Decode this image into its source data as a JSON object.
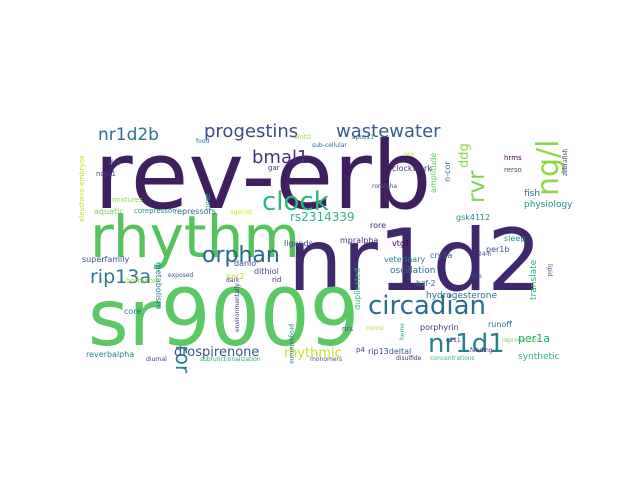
{
  "words": [
    {
      "text": "rev-erb",
      "color": "#3f1f5f"
    },
    {
      "text": "nr1d2",
      "color": "#40286e"
    },
    {
      "text": "sr9009",
      "color": "#5bc864"
    },
    {
      "text": "rhythm",
      "color": "#55c35b"
    },
    {
      "text": "circadian",
      "color": "#2b6d8c"
    },
    {
      "text": "nr1d1",
      "color": "#23818b"
    },
    {
      "text": "ng/l",
      "color": "#8fd744"
    },
    {
      "text": "progestins",
      "color": "#3b4c8a"
    },
    {
      "text": "wastewater",
      "color": "#355c8c"
    },
    {
      "text": "clock",
      "color": "#2fb47c"
    },
    {
      "text": "orphan",
      "color": "#26668e"
    },
    {
      "text": "nr1d2b",
      "color": "#2b728e"
    },
    {
      "text": "bmal1",
      "color": "#46337e"
    },
    {
      "text": "rip13a",
      "color": "#2a788e"
    },
    {
      "text": "rvr",
      "color": "#7ed34f"
    },
    {
      "text": "ror",
      "color": "#26828e"
    },
    {
      "text": "rs2314339",
      "color": "#31b57b"
    },
    {
      "text": "drospirenone",
      "color": "#3b528b"
    },
    {
      "text": "rhythmic",
      "color": "#c8e020"
    },
    {
      "text": "per1a",
      "color": "#1f9e89"
    },
    {
      "text": "ddg",
      "color": "#8fd744"
    },
    {
      "text": "fish",
      "color": "#2c718e"
    },
    {
      "text": "physiology",
      "color": "#20928c"
    },
    {
      "text": "amplitude",
      "color": "#5ec962"
    },
    {
      "text": "oscillation",
      "color": "#2d708e"
    },
    {
      "text": "mpralpha",
      "color": "#472d7b"
    },
    {
      "text": "dithiol",
      "color": "#3f4788"
    },
    {
      "text": "veterinary",
      "color": "#26828e"
    },
    {
      "text": "hydrogesterone",
      "color": "#2e6e8e"
    },
    {
      "text": "translate",
      "color": "#29af7f"
    },
    {
      "text": "gsk4112",
      "color": "#238a8d"
    },
    {
      "text": "rip13deltal",
      "color": "#3b528b"
    },
    {
      "text": "porphyrin",
      "color": "#46337e"
    },
    {
      "text": "runoff",
      "color": "#31688e"
    },
    {
      "text": "synthetic",
      "color": "#35b779"
    },
    {
      "text": "reverbalpha",
      "color": "#26828e"
    },
    {
      "text": "superfamily",
      "color": "#3e4c8a"
    },
    {
      "text": "metabolism",
      "color": "#2a788e"
    },
    {
      "text": "hormone",
      "color": "#a2da37"
    },
    {
      "text": "danio",
      "color": "#3e4a89"
    },
    {
      "text": "duplicated",
      "color": "#35b779"
    },
    {
      "text": "vtg1",
      "color": "#440154"
    },
    {
      "text": "cry1a",
      "color": "#31688e"
    },
    {
      "text": "per1b",
      "color": "#3b528b"
    },
    {
      "text": "sleep",
      "color": "#21918c"
    },
    {
      "text": "hzf-2",
      "color": "#2c728e"
    },
    {
      "text": "rore",
      "color": "#482475"
    },
    {
      "text": "ligands",
      "color": "#3b528b"
    },
    {
      "text": "repressors",
      "color": "#31688e"
    },
    {
      "text": "corepressor",
      "color": "#21918c"
    },
    {
      "text": "mixtures",
      "color": "#8fd744"
    },
    {
      "text": "aquatic",
      "color": "#7ad151"
    },
    {
      "text": "ncor1",
      "color": "#433e85"
    },
    {
      "text": "drs",
      "color": "#3e4989"
    },
    {
      "text": "clockwork",
      "color": "#46327e"
    },
    {
      "text": "hrms",
      "color": "#440154"
    },
    {
      "text": "rerso",
      "color": "#3b528b"
    },
    {
      "text": "n-cor",
      "color": "#2a788e"
    },
    {
      "text": "gar",
      "color": "#472c7a"
    },
    {
      "text": "roralpha",
      "color": "#3e4a89"
    },
    {
      "text": "eleuthero-embryos",
      "color": "#c2df23"
    },
    {
      "text": "zebrafish",
      "color": "#404688"
    },
    {
      "text": "core",
      "color": "#2c728e"
    },
    {
      "text": "rid",
      "color": "#482878"
    },
    {
      "text": "nrs",
      "color": "#3b528b"
    },
    {
      "text": "p4",
      "color": "#3f4889"
    },
    {
      "text": "per2",
      "color": "#bddf26"
    },
    {
      "text": "exposed",
      "color": "#3b528b"
    },
    {
      "text": "pose",
      "color": "#22a884"
    },
    {
      "text": "agonist",
      "color": "#d5e21a"
    },
    {
      "text": "lipid",
      "color": "#404688"
    },
    {
      "text": "24-h",
      "color": "#414487"
    },
    {
      "text": "reproduction",
      "color": "#7ad151"
    },
    {
      "text": "hre",
      "color": "#3e4989"
    },
    {
      "text": "feeding",
      "color": "#482475"
    },
    {
      "text": "concentrations",
      "color": "#35b779"
    },
    {
      "text": "disulfide",
      "color": "#472d7b"
    },
    {
      "text": "diurnal",
      "color": "#46327e"
    },
    {
      "text": "environmentally",
      "color": "#414487"
    },
    {
      "text": "progesterone",
      "color": "#2a788e"
    },
    {
      "text": "mimic",
      "color": "#a5db36"
    },
    {
      "text": "monomers",
      "color": "#3b528b"
    },
    {
      "text": "food",
      "color": "#287d8e"
    },
    {
      "text": "arntl2",
      "color": "#90d743"
    },
    {
      "text": "apoc11",
      "color": "#2d708e"
    },
    {
      "text": "dark",
      "color": "#404588"
    },
    {
      "text": "heme",
      "color": "#2db27d"
    },
    {
      "text": "c111",
      "color": "#453781"
    },
    {
      "text": "sub-cellular",
      "color": "#31688e"
    },
    {
      "text": "subfunctionalization",
      "color": "#22a884"
    },
    {
      "text": "sex",
      "color": "#c0df25"
    }
  ]
}
